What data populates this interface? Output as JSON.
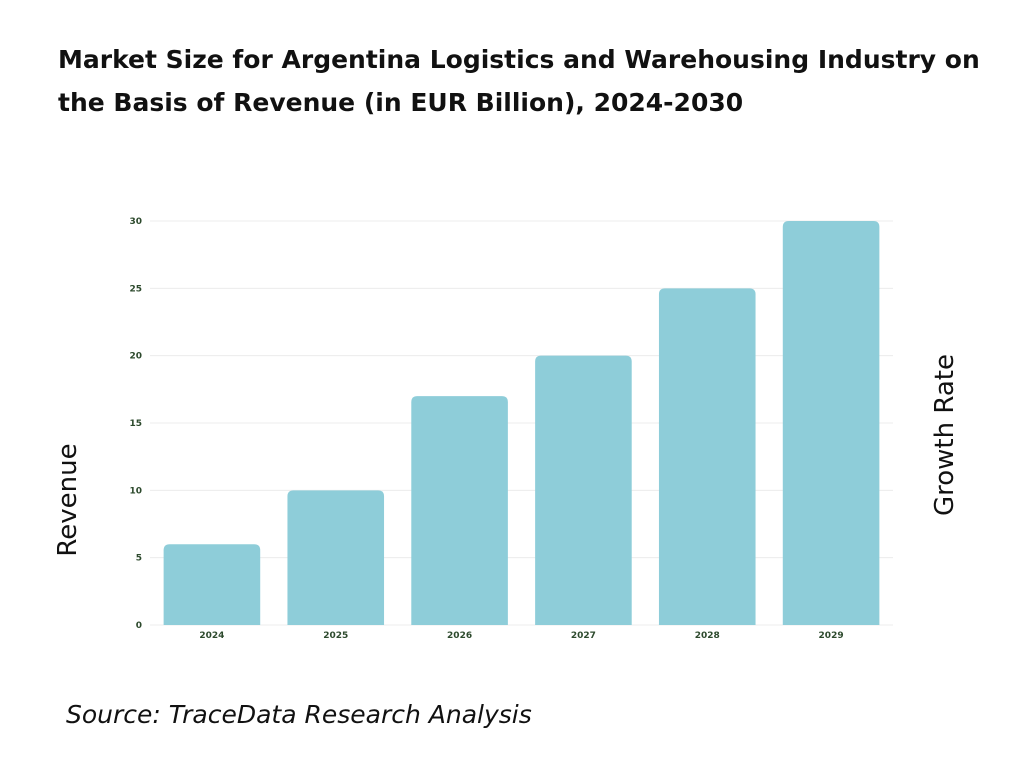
{
  "title": "Market Size for Argentina Logistics and Warehousing Industry on the Basis of Revenue (in EUR Billion), 2024-2030",
  "source": "Source: TraceData Research Analysis",
  "chart_data": {
    "type": "bar",
    "title": "Market Size for Argentina Logistics and Warehousing Industry on the Basis of Revenue (in EUR Billion), 2024-2030",
    "categories": [
      "2024",
      "2025",
      "2026",
      "2027",
      "2028",
      "2029"
    ],
    "values": [
      6,
      10,
      17,
      20,
      25,
      30
    ],
    "ylabel": "Revenue",
    "y2label": "Growth Rate",
    "xlabel": "",
    "ylim": [
      0,
      30
    ],
    "yticks": [
      0,
      5,
      10,
      15,
      20,
      25,
      30
    ],
    "grid": true,
    "bar_color": "#8ecdd9",
    "grid_color": "#ececec",
    "tick_color": "#2d4a2d"
  }
}
